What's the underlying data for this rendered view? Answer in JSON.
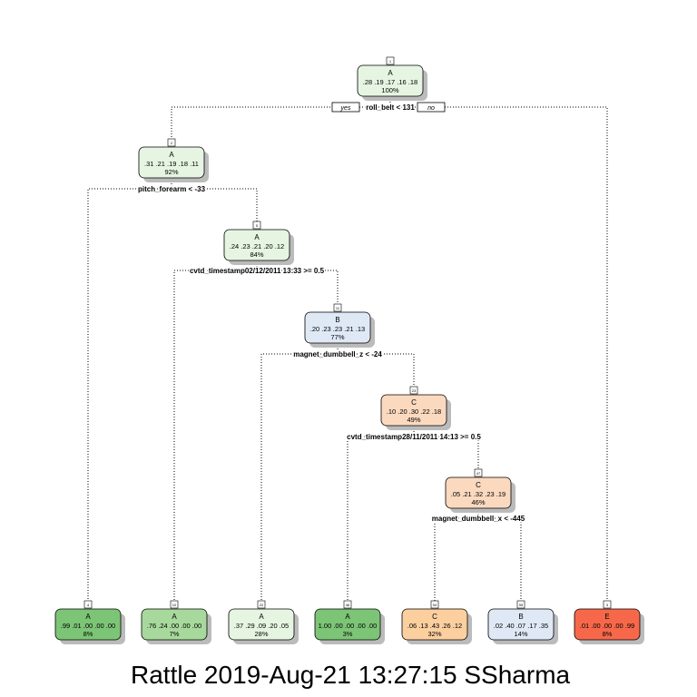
{
  "caption": "Rattle 2019-Aug-21 13:27:15 SSharma",
  "colors": {
    "A": "#e6f5e2",
    "A_dark": "#7cc576",
    "A_mid": "#a8d99c",
    "B": "#dfe9f6",
    "C": "#fbd9bf",
    "C_mid": "#fccf9f",
    "E": "#f7684a"
  },
  "yes_label": "yes",
  "no_label": "no",
  "nodes": [
    {
      "id": "1",
      "cls": "A",
      "probs": ".28 .19 .17 .16 .18",
      "pct": "100%",
      "color": "A"
    },
    {
      "id": "2",
      "cls": "A",
      "probs": ".31 .21 .19 .18 .11",
      "pct": "92%",
      "color": "A"
    },
    {
      "id": "5",
      "cls": "A",
      "probs": ".24 .23 .21 .20 .12",
      "pct": "84%",
      "color": "A"
    },
    {
      "id": "11",
      "cls": "B",
      "probs": ".20 .23 .23 .21 .13",
      "pct": "77%",
      "color": "B"
    },
    {
      "id": "23",
      "cls": "C",
      "probs": ".10 .20 .30 .22 .18",
      "pct": "49%",
      "color": "C"
    },
    {
      "id": "47",
      "cls": "C",
      "probs": ".05 .21 .32 .23 .19",
      "pct": "46%",
      "color": "C"
    },
    {
      "id": "4",
      "cls": "A",
      "probs": ".99 .01 .00 .00 .00",
      "pct": "8%",
      "color": "A_dark"
    },
    {
      "id": "10",
      "cls": "A",
      "probs": ".76 .24 .00 .00 .00",
      "pct": "7%",
      "color": "A_mid"
    },
    {
      "id": "22",
      "cls": "A",
      "probs": ".37 .29 .09 .20 .05",
      "pct": "28%",
      "color": "A"
    },
    {
      "id": "46",
      "cls": "A",
      "probs": "1.00 .00 .00 .00 .00",
      "pct": "3%",
      "color": "A_dark"
    },
    {
      "id": "94",
      "cls": "C",
      "probs": ".06 .13 .43 .26 .12",
      "pct": "32%",
      "color": "C_mid"
    },
    {
      "id": "95",
      "cls": "B",
      "probs": ".02 .40 .07 .17 .35",
      "pct": "14%",
      "color": "B"
    },
    {
      "id": "3",
      "cls": "E",
      "probs": ".01 .00 .00 .00 .99",
      "pct": "8%",
      "color": "E"
    }
  ],
  "splits": [
    {
      "node": "1",
      "text": "roll_belt < 131"
    },
    {
      "node": "2",
      "text": "pitch_forearm < -33"
    },
    {
      "node": "5",
      "text": "cvtd_timestamp02/12/2011 13:33 >= 0.5"
    },
    {
      "node": "11",
      "text": "magnet_dumbbell_z < -24"
    },
    {
      "node": "23",
      "text": "cvtd_timestamp28/11/2011 14:13 >= 0.5"
    },
    {
      "node": "47",
      "text": "magnet_dumbbell_x < -445"
    }
  ]
}
